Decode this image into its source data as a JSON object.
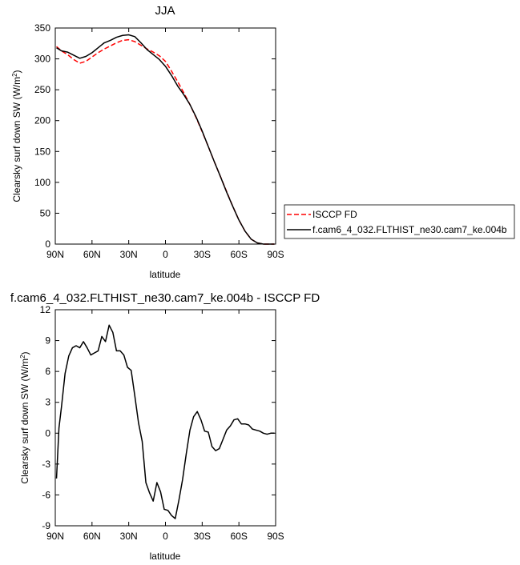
{
  "chart_data": [
    {
      "type": "line",
      "title": "JJA",
      "xlabel": "latitude",
      "ylabel": "Clearsky surf down SW (W/m",
      "ylabel_sup": "2",
      "ylabel_close": ")",
      "xlim": [
        90,
        -90
      ],
      "ylim": [
        0,
        350
      ],
      "xticks": [
        90,
        60,
        30,
        0,
        -30,
        -60,
        -90
      ],
      "xtick_labels": [
        "90N",
        "60N",
        "30N",
        "0",
        "30S",
        "60S",
        "90S"
      ],
      "yticks": [
        0,
        50,
        100,
        150,
        200,
        250,
        300,
        350
      ],
      "ytick_labels": [
        "0",
        "50",
        "100",
        "150",
        "200",
        "250",
        "300",
        "350"
      ],
      "legend_position": "right",
      "series": [
        {
          "name": "ISCCP FD",
          "color": "#ff0000",
          "dash": "dashed",
          "x": [
            89,
            85,
            80,
            75,
            70,
            65,
            60,
            55,
            50,
            45,
            40,
            35,
            30,
            25,
            20,
            15,
            10,
            5,
            0,
            -5,
            -10,
            -15,
            -20,
            -25,
            -30,
            -35,
            -40,
            -45,
            -50,
            -55,
            -60,
            -65,
            -70,
            -75,
            -80,
            -85,
            -89
          ],
          "y": [
            320,
            313,
            307,
            299,
            293,
            296,
            303,
            310,
            316,
            321,
            326,
            330,
            331,
            328,
            322,
            316,
            311,
            305,
            296,
            280,
            263,
            245,
            226,
            205,
            182,
            158,
            133,
            109,
            85,
            61,
            39,
            21,
            8,
            2,
            0,
            0,
            0
          ]
        },
        {
          "name": "f.cam6_4_032.FLTHIST_ne30.cam7_ke.004b",
          "color": "#000000",
          "dash": "solid",
          "x": [
            89,
            85,
            80,
            75,
            70,
            65,
            60,
            55,
            50,
            45,
            40,
            35,
            30,
            25,
            20,
            15,
            10,
            5,
            0,
            -5,
            -10,
            -15,
            -20,
            -25,
            -30,
            -35,
            -40,
            -45,
            -50,
            -55,
            -60,
            -65,
            -70,
            -75,
            -80,
            -85,
            -89
          ],
          "y": [
            318,
            313,
            311,
            306,
            301,
            304,
            310,
            318,
            326,
            330,
            335,
            338,
            339,
            336,
            326,
            315,
            307,
            299,
            288,
            273,
            256,
            242,
            226,
            206,
            183,
            158,
            133,
            109,
            84,
            61,
            39,
            21,
            8,
            2,
            0,
            0,
            0
          ]
        }
      ]
    },
    {
      "type": "line",
      "title": "f.cam6_4_032.FLTHIST_ne30.cam7_ke.004b - ISCCP FD",
      "xlabel": "latitude",
      "ylabel": "Clearsky surf down SW (W/m",
      "ylabel_sup": "2",
      "ylabel_close": ")",
      "xlim": [
        90,
        -90
      ],
      "ylim": [
        -9,
        12
      ],
      "xticks": [
        90,
        60,
        30,
        0,
        -30,
        -60,
        -90
      ],
      "xtick_labels": [
        "90N",
        "60N",
        "30N",
        "0",
        "30S",
        "60S",
        "90S"
      ],
      "yticks": [
        -9,
        -6,
        -3,
        0,
        3,
        6,
        9,
        12
      ],
      "ytick_labels": [
        "-9",
        "-6",
        "-3",
        "0",
        "3",
        "6",
        "9",
        "12"
      ],
      "series": [
        {
          "color": "#000000",
          "dash": "solid",
          "x": [
            89,
            87,
            85,
            82,
            79,
            76,
            73,
            70,
            67,
            64,
            61,
            58,
            55,
            52,
            49,
            46,
            43,
            40,
            37,
            34,
            31,
            28,
            25,
            22,
            19,
            16,
            13,
            10,
            7,
            4,
            1,
            -2,
            -5,
            -8,
            -11,
            -14,
            -17,
            -20,
            -23,
            -26,
            -29,
            -32,
            -35,
            -38,
            -41,
            -44,
            -47,
            -50,
            -53,
            -56,
            -59,
            -62,
            -65,
            -68,
            -71,
            -74,
            -77,
            -80,
            -83,
            -86,
            -89
          ],
          "y": [
            -4.4,
            0.5,
            2.5,
            5.8,
            7.5,
            8.3,
            8.5,
            8.3,
            8.9,
            8.3,
            7.6,
            7.8,
            8.0,
            9.4,
            8.9,
            10.5,
            9.8,
            8.0,
            8.0,
            7.6,
            6.4,
            6.1,
            3.6,
            1.0,
            -0.8,
            -4.8,
            -5.8,
            -6.6,
            -4.8,
            -5.7,
            -7.4,
            -7.5,
            -8.0,
            -8.3,
            -6.5,
            -4.5,
            -2.0,
            0.3,
            1.6,
            2.1,
            1.3,
            0.2,
            0.1,
            -1.3,
            -1.7,
            -1.5,
            -0.6,
            0.3,
            0.7,
            1.3,
            1.4,
            0.9,
            0.9,
            0.8,
            0.4,
            0.3,
            0.2,
            0.0,
            -0.1,
            0.0,
            0.0
          ]
        }
      ]
    }
  ]
}
